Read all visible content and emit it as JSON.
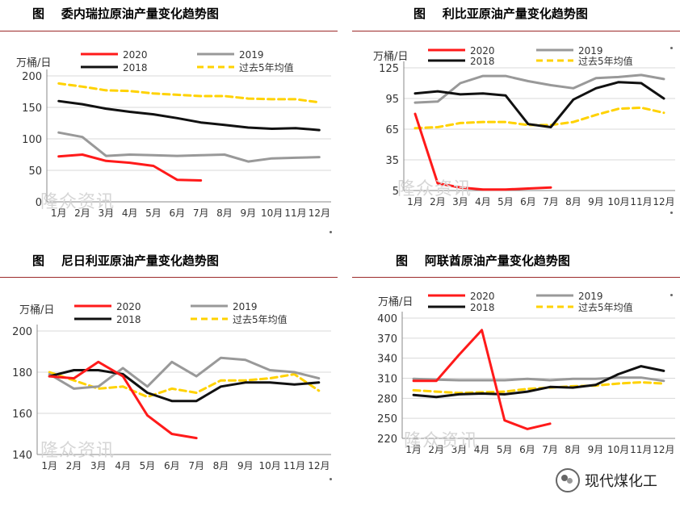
{
  "panels": [
    {
      "title": "图    委内瑞拉原油产量变化趋势图"
    },
    {
      "title": "图    利比亚原油产量变化趋势图"
    },
    {
      "title": "图    尼日利亚原油产量变化趋势图"
    },
    {
      "title": "图    阿联酋原油产量变化趋势图"
    }
  ],
  "watermark": "隆众资讯",
  "brand": "现代煤化工",
  "colors": {
    "s2020": "#ff1a1a",
    "s2019": "#999999",
    "s2018": "#111111",
    "avg5": "#ffd200",
    "rule": "#9c2a2a"
  },
  "chart_data": [
    {
      "type": "line",
      "ylabel": "万桶/日",
      "categories": [
        "1月",
        "2月",
        "3月",
        "4月",
        "5月",
        "6月",
        "7月",
        "8月",
        "9月",
        "10月",
        "11月",
        "12月"
      ],
      "yticks": [
        0,
        50,
        100,
        150,
        200
      ],
      "ylim": [
        0,
        200
      ],
      "grid": true,
      "legend_position": "top",
      "series": [
        {
          "name": "2020",
          "values": [
            72,
            75,
            65,
            62,
            57,
            35,
            34,
            null,
            null,
            null,
            null,
            null
          ]
        },
        {
          "name": "2019",
          "values": [
            110,
            103,
            73,
            75,
            74,
            73,
            74,
            75,
            64,
            69,
            70,
            71
          ]
        },
        {
          "name": "2018",
          "values": [
            160,
            155,
            148,
            143,
            139,
            133,
            126,
            122,
            118,
            116,
            117,
            114
          ]
        },
        {
          "name": "过去5年均值",
          "values": [
            188,
            183,
            177,
            176,
            172,
            170,
            168,
            168,
            164,
            163,
            163,
            158
          ]
        }
      ]
    },
    {
      "type": "line",
      "ylabel": "万桶/日",
      "categories": [
        "1月",
        "2月",
        "3月",
        "4月",
        "5月",
        "6月",
        "7月",
        "8月",
        "9月",
        "10月",
        "11月",
        "12月"
      ],
      "yticks": [
        5,
        35,
        65,
        95,
        125
      ],
      "ylim": [
        5,
        125
      ],
      "grid": true,
      "legend_position": "top",
      "series": [
        {
          "name": "2020",
          "values": [
            80,
            12,
            8,
            6,
            6,
            7,
            8,
            null,
            null,
            null,
            null,
            null
          ]
        },
        {
          "name": "2019",
          "values": [
            91,
            92,
            110,
            117,
            117,
            112,
            108,
            105,
            115,
            116,
            118,
            114
          ]
        },
        {
          "name": "2018",
          "values": [
            100,
            102,
            99,
            100,
            98,
            70,
            67,
            94,
            105,
            111,
            110,
            95
          ]
        },
        {
          "name": "过去5年均值",
          "values": [
            66,
            67,
            71,
            72,
            72,
            69,
            69,
            72,
            79,
            85,
            86,
            81
          ]
        }
      ]
    },
    {
      "type": "line",
      "ylabel": "万桶/日",
      "categories": [
        "1月",
        "2月",
        "3月",
        "4月",
        "5月",
        "6月",
        "7月",
        "8月",
        "9月",
        "10月",
        "11月",
        "12月"
      ],
      "yticks": [
        140,
        160,
        180,
        200
      ],
      "ylim": [
        140,
        200
      ],
      "grid": true,
      "legend_position": "top",
      "series": [
        {
          "name": "2020",
          "values": [
            178,
            177,
            185,
            178,
            159,
            150,
            148,
            null,
            null,
            null,
            null,
            null
          ]
        },
        {
          "name": "2019",
          "values": [
            179,
            172,
            173,
            182,
            173,
            185,
            178,
            187,
            186,
            181,
            180,
            177
          ]
        },
        {
          "name": "2018",
          "values": [
            178,
            181,
            181,
            179,
            170,
            166,
            166,
            173,
            175,
            175,
            174,
            175
          ]
        },
        {
          "name": "过去5年均值",
          "values": [
            180,
            176,
            172,
            173,
            168,
            172,
            170,
            176,
            176,
            177,
            179,
            171
          ]
        }
      ]
    },
    {
      "type": "line",
      "ylabel": "万桶/日",
      "categories": [
        "1月",
        "2月",
        "3月",
        "4月",
        "5月",
        "6月",
        "7月",
        "8月",
        "9月",
        "10月",
        "11月",
        "12月"
      ],
      "yticks": [
        220,
        250,
        280,
        310,
        340,
        370,
        400
      ],
      "ylim": [
        220,
        400
      ],
      "grid": true,
      "legend_position": "top",
      "series": [
        {
          "name": "2020",
          "values": [
            306,
            306,
            345,
            382,
            247,
            234,
            242,
            null,
            null,
            null,
            null,
            null
          ]
        },
        {
          "name": "2019",
          "values": [
            309,
            308,
            307,
            307,
            307,
            309,
            307,
            309,
            309,
            311,
            311,
            306
          ]
        },
        {
          "name": "2018",
          "values": [
            285,
            282,
            286,
            287,
            286,
            290,
            297,
            296,
            300,
            316,
            328,
            321
          ]
        },
        {
          "name": "过去5年均值",
          "values": [
            292,
            290,
            288,
            289,
            290,
            294,
            296,
            298,
            299,
            302,
            304,
            302
          ]
        }
      ]
    }
  ]
}
